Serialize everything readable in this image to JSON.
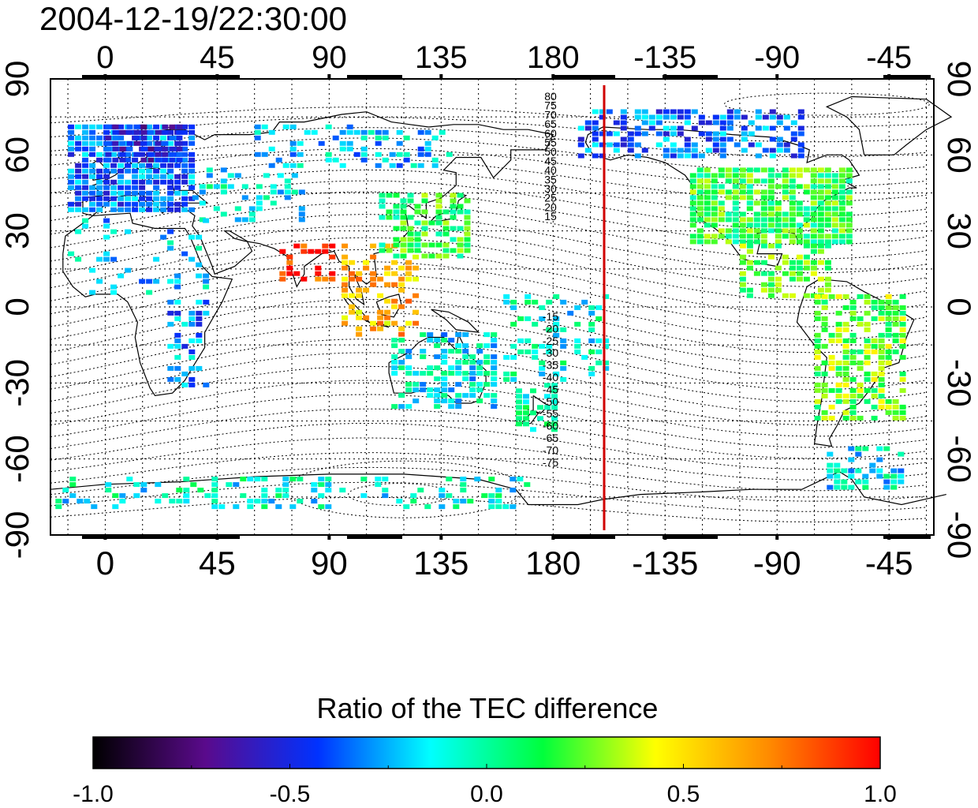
{
  "timestamp": "2004-12-19/22:30:00",
  "colorbar": {
    "title": "Ratio of the TEC difference",
    "ticks": [
      "-1.0",
      "-0.5",
      "0.0",
      "0.5",
      "1.0"
    ],
    "colors": [
      "#000000",
      "#5a0a8c",
      "#0032ff",
      "#00ffff",
      "#00ff3c",
      "#ffff00",
      "#ff8c00",
      "#ff0000"
    ]
  },
  "axes": {
    "top_lon_labels": [
      "0",
      "45",
      "90",
      "135",
      "180",
      "-135",
      "-90",
      "-45"
    ],
    "bottom_lon_labels": [
      "0",
      "45",
      "90",
      "135",
      "180",
      "-135",
      "-90",
      "-45"
    ],
    "left_lat_labels": [
      "90",
      "60",
      "30",
      "0",
      "-30",
      "-60",
      "-90"
    ],
    "right_lat_labels": [
      "90",
      "60",
      "30",
      "0",
      "-30",
      "-60",
      "-90"
    ]
  },
  "magnetic_latitude_labels": {
    "north": [
      "80",
      "75",
      "70",
      "65",
      "60",
      "55",
      "50",
      "45",
      "40",
      "35",
      "30",
      "25",
      "20",
      "15"
    ],
    "south": [
      "-15",
      "-20",
      "-25",
      "-30",
      "-35",
      "-40",
      "-45",
      "-50",
      "-55",
      "-60",
      "-65",
      "-70",
      "-75"
    ]
  },
  "terminator_line": {
    "color": "#d00000"
  },
  "tec_regions": [
    {
      "name": "europe",
      "lon": [
        -15,
        35
      ],
      "lat": [
        38,
        72
      ],
      "ratio": -0.35,
      "density": 0.85
    },
    {
      "name": "scandinavia",
      "lon": [
        0,
        30
      ],
      "lat": [
        58,
        72
      ],
      "ratio": -0.55,
      "density": 0.8
    },
    {
      "name": "west-asia",
      "lon": [
        35,
        80
      ],
      "lat": [
        35,
        55
      ],
      "ratio": -0.1,
      "density": 0.25
    },
    {
      "name": "north-africa",
      "lon": [
        -15,
        40
      ],
      "lat": [
        5,
        35
      ],
      "ratio": -0.2,
      "density": 0.15
    },
    {
      "name": "east-africa",
      "lon": [
        25,
        40
      ],
      "lat": [
        -30,
        5
      ],
      "ratio": -0.3,
      "density": 0.3
    },
    {
      "name": "india",
      "lon": [
        70,
        90
      ],
      "lat": [
        10,
        25
      ],
      "ratio": 0.9,
      "density": 0.45
    },
    {
      "name": "southeast-asia",
      "lon": [
        95,
        125
      ],
      "lat": [
        -10,
        25
      ],
      "ratio": 0.6,
      "density": 0.35
    },
    {
      "name": "china-japan",
      "lon": [
        110,
        145
      ],
      "lat": [
        20,
        45
      ],
      "ratio": 0.15,
      "density": 0.6
    },
    {
      "name": "siberia",
      "lon": [
        60,
        140
      ],
      "lat": [
        55,
        72
      ],
      "ratio": -0.2,
      "density": 0.35
    },
    {
      "name": "australia",
      "lon": [
        115,
        155
      ],
      "lat": [
        -40,
        -10
      ],
      "ratio": -0.15,
      "density": 0.6
    },
    {
      "name": "new-zealand",
      "lon": [
        165,
        180
      ],
      "lat": [
        -48,
        -30
      ],
      "ratio": -0.05,
      "density": 0.6
    },
    {
      "name": "pacific-islands",
      "lon": [
        160,
        200
      ],
      "lat": [
        -28,
        5
      ],
      "ratio": -0.1,
      "density": 0.3
    },
    {
      "name": "alaska-arctic",
      "lon": [
        190,
        280
      ],
      "lat": [
        60,
        78
      ],
      "ratio": -0.35,
      "density": 0.55
    },
    {
      "name": "north-america",
      "lon": [
        235,
        300
      ],
      "lat": [
        25,
        55
      ],
      "ratio": 0.15,
      "density": 0.85
    },
    {
      "name": "central-america",
      "lon": [
        255,
        290
      ],
      "lat": [
        5,
        25
      ],
      "ratio": 0.2,
      "density": 0.5
    },
    {
      "name": "south-america",
      "lon": [
        285,
        320
      ],
      "lat": [
        -45,
        5
      ],
      "ratio": 0.25,
      "density": 0.6
    },
    {
      "name": "antarctic-coast",
      "lon": [
        -20,
        170
      ],
      "lat": [
        -80,
        -67
      ],
      "ratio": -0.1,
      "density": 0.3
    },
    {
      "name": "antarctic-peninsula",
      "lon": [
        290,
        320
      ],
      "lat": [
        -72,
        -55
      ],
      "ratio": -0.15,
      "density": 0.45
    }
  ]
}
